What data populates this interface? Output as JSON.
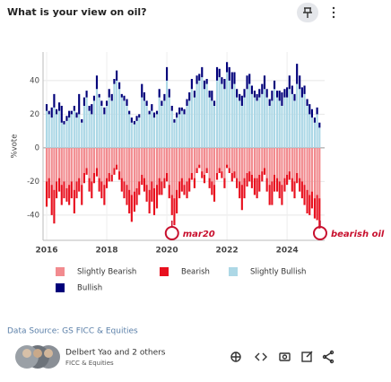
{
  "chart_data": {
    "type": "stacked_bar",
    "title": "What is your view on oil?",
    "ylabel": "%vote",
    "x": [
      2016.0,
      2016.08,
      2016.17,
      2016.25,
      2016.33,
      2016.42,
      2016.5,
      2016.58,
      2016.67,
      2016.75,
      2016.83,
      2016.92,
      2017.0,
      2017.08,
      2017.17,
      2017.25,
      2017.33,
      2017.42,
      2017.5,
      2017.58,
      2017.67,
      2017.75,
      2017.83,
      2017.92,
      2018.0,
      2018.08,
      2018.17,
      2018.25,
      2018.33,
      2018.42,
      2018.5,
      2018.58,
      2018.67,
      2018.75,
      2018.83,
      2018.92,
      2019.0,
      2019.08,
      2019.17,
      2019.25,
      2019.33,
      2019.42,
      2019.5,
      2019.58,
      2019.67,
      2019.75,
      2019.83,
      2019.92,
      2020.0,
      2020.08,
      2020.17,
      2020.25,
      2020.33,
      2020.42,
      2020.5,
      2020.58,
      2020.67,
      2020.75,
      2020.83,
      2020.92,
      2021.0,
      2021.08,
      2021.17,
      2021.25,
      2021.33,
      2021.42,
      2021.5,
      2021.58,
      2021.67,
      2021.75,
      2021.83,
      2021.92,
      2022.0,
      2022.08,
      2022.17,
      2022.25,
      2022.33,
      2022.42,
      2022.5,
      2022.58,
      2022.67,
      2022.75,
      2022.83,
      2022.92,
      2023.0,
      2023.08,
      2023.17,
      2023.25,
      2023.33,
      2023.42,
      2023.5,
      2023.58,
      2023.67,
      2023.75,
      2023.83,
      2023.92,
      2024.0,
      2024.08,
      2024.17,
      2024.25,
      2024.33,
      2024.42,
      2024.5,
      2024.58,
      2024.67,
      2024.75,
      2024.83,
      2024.92,
      2025.0,
      2025.08
    ],
    "series": [
      {
        "name": "Slightly Bearish",
        "color": "#f28b8f",
        "values": [
          -20,
          -18,
          -22,
          -25,
          -20,
          -18,
          -22,
          -20,
          -24,
          -22,
          -20,
          -25,
          -20,
          -18,
          -22,
          -15,
          -12,
          -18,
          -20,
          -15,
          -12,
          -18,
          -20,
          -22,
          -18,
          -15,
          -16,
          -12,
          -10,
          -14,
          -18,
          -20,
          -22,
          -25,
          -28,
          -26,
          -24,
          -20,
          -16,
          -18,
          -22,
          -25,
          -20,
          -24,
          -22,
          -18,
          -20,
          -18,
          -15,
          -22,
          -28,
          -30,
          -25,
          -20,
          -18,
          -22,
          -20,
          -18,
          -15,
          -18,
          -12,
          -10,
          -14,
          -16,
          -12,
          -18,
          -20,
          -22,
          -15,
          -12,
          -14,
          -18,
          -10,
          -12,
          -15,
          -14,
          -18,
          -20,
          -22,
          -18,
          -15,
          -14,
          -16,
          -18,
          -18,
          -16,
          -14,
          -12,
          -18,
          -22,
          -20,
          -16,
          -18,
          -20,
          -22,
          -18,
          -16,
          -14,
          -18,
          -20,
          -15,
          -18,
          -20,
          -22,
          -25,
          -28,
          -26,
          -30,
          -28,
          -30
        ]
      },
      {
        "name": "Bearish",
        "color": "#e8101e",
        "values": [
          -15,
          -12,
          -18,
          -20,
          -10,
          -8,
          -12,
          -10,
          -8,
          -12,
          -10,
          -14,
          -10,
          -8,
          -12,
          -6,
          -4,
          -8,
          -10,
          -6,
          -5,
          -8,
          -10,
          -12,
          -6,
          -5,
          -4,
          -4,
          -3,
          -5,
          -8,
          -10,
          -12,
          -14,
          -16,
          -12,
          -10,
          -8,
          -6,
          -8,
          -10,
          -14,
          -12,
          -16,
          -14,
          -10,
          -8,
          -6,
          -5,
          -8,
          -12,
          -16,
          -14,
          -10,
          -8,
          -6,
          -10,
          -8,
          -4,
          -6,
          -3,
          -2,
          -4,
          -5,
          -3,
          -6,
          -8,
          -10,
          -4,
          -3,
          -4,
          -6,
          -2,
          -3,
          -5,
          -4,
          -6,
          -10,
          -15,
          -12,
          -8,
          -6,
          -8,
          -10,
          -12,
          -10,
          -6,
          -4,
          -8,
          -12,
          -14,
          -10,
          -8,
          -10,
          -12,
          -8,
          -6,
          -5,
          -8,
          -10,
          -6,
          -8,
          -10,
          -12,
          -14,
          -12,
          -10,
          -12,
          -15,
          -18
        ]
      },
      {
        "name": "Slightly Bullish",
        "color": "#add8e6",
        "values": [
          22,
          20,
          18,
          24,
          20,
          22,
          15,
          14,
          16,
          18,
          20,
          22,
          18,
          20,
          15,
          25,
          30,
          22,
          20,
          28,
          35,
          30,
          25,
          20,
          25,
          30,
          28,
          38,
          40,
          35,
          30,
          28,
          25,
          20,
          15,
          14,
          16,
          18,
          30,
          28,
          25,
          20,
          22,
          18,
          20,
          30,
          25,
          28,
          40,
          30,
          22,
          15,
          18,
          20,
          22,
          20,
          25,
          28,
          35,
          30,
          38,
          40,
          42,
          35,
          38,
          30,
          28,
          25,
          40,
          42,
          38,
          35,
          45,
          40,
          35,
          38,
          30,
          28,
          25,
          30,
          35,
          38,
          32,
          30,
          28,
          30,
          32,
          35,
          30,
          25,
          28,
          35,
          30,
          28,
          25,
          30,
          30,
          35,
          32,
          28,
          38,
          35,
          30,
          32,
          25,
          20,
          18,
          15,
          20,
          12
        ]
      },
      {
        "name": "Bullish",
        "color": "#00007a",
        "values": [
          4,
          2,
          6,
          8,
          3,
          5,
          10,
          2,
          3,
          4,
          2,
          3,
          3,
          12,
          2,
          5,
          4,
          3,
          6,
          3,
          8,
          2,
          3,
          4,
          3,
          5,
          4,
          3,
          6,
          4,
          2,
          3,
          4,
          2,
          3,
          2,
          3,
          2,
          8,
          5,
          3,
          2,
          4,
          3,
          2,
          5,
          3,
          4,
          8,
          5,
          3,
          2,
          3,
          4,
          2,
          3,
          4,
          5,
          6,
          4,
          5,
          4,
          6,
          5,
          3,
          4,
          6,
          3,
          8,
          5,
          4,
          6,
          6,
          8,
          10,
          7,
          5,
          4,
          6,
          5,
          8,
          6,
          5,
          4,
          4,
          5,
          6,
          8,
          5,
          4,
          6,
          5,
          4,
          6,
          8,
          5,
          6,
          8,
          5,
          4,
          12,
          8,
          6,
          5,
          4,
          6,
          5,
          3,
          4,
          3
        ]
      }
    ],
    "xlim": [
      2015.88,
      2025.25
    ],
    "xticks": [
      2016,
      2018,
      2020,
      2022,
      2024
    ],
    "ylim": [
      -55,
      57
    ],
    "yticks": [
      -40,
      -20,
      0,
      20,
      40
    ],
    "grid": true,
    "annotations": [
      {
        "text": "mar20",
        "x": 2020.17
      },
      {
        "text": "bearish oil",
        "x": 2025.1
      }
    ]
  },
  "footer": {
    "data_source": "Data Source: GS FICC & Equities",
    "author": "Delbert Yao and 2 others",
    "team": "FICC & Equities"
  }
}
